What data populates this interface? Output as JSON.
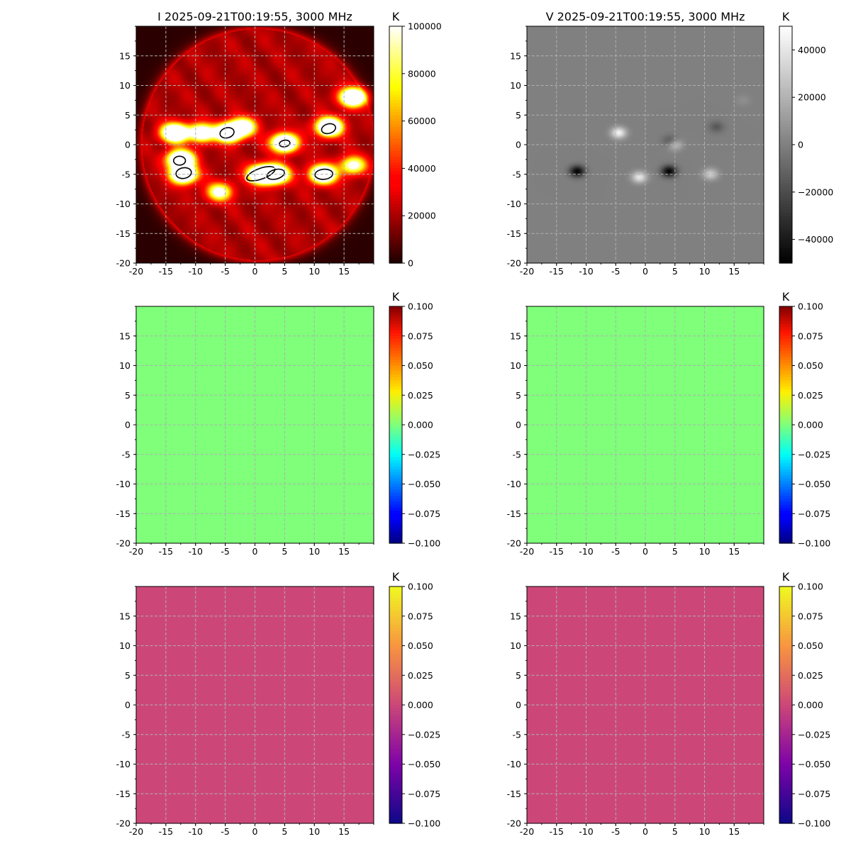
{
  "figure": {
    "background": "#ffffff"
  },
  "chart_data": [
    {
      "id": "I",
      "type": "heatmap",
      "title": "I 2025-09-21T00:19:55, 3000 MHz",
      "xlim": [
        -20,
        20
      ],
      "ylim": [
        -20,
        20
      ],
      "x_ticks": [
        -20,
        -15,
        -10,
        -5,
        0,
        5,
        10,
        15
      ],
      "y_ticks": [
        -20,
        -15,
        -10,
        -5,
        0,
        5,
        10,
        15
      ],
      "grid": true,
      "colormap": "hot",
      "colorbar": {
        "label": "K",
        "min": 0,
        "max": 100000,
        "ticks": [
          0,
          20000,
          40000,
          60000,
          80000,
          100000
        ]
      },
      "contours": "black contour rings around the brightest sources (level 100000)",
      "sources": [
        {
          "x": -13.5,
          "y": 2.0,
          "brightness": 1.0
        },
        {
          "x": -12.5,
          "y": -2.5,
          "brightness": 1.0
        },
        {
          "x": -12,
          "y": -5,
          "brightness": 1.0
        },
        {
          "x": -9,
          "y": 2.0,
          "brightness": 0.75
        },
        {
          "x": -4.5,
          "y": 2.0,
          "brightness": 1.0
        },
        {
          "x": -2,
          "y": 3,
          "brightness": 0.7
        },
        {
          "x": 1,
          "y": -5,
          "brightness": 1.0
        },
        {
          "x": 3.5,
          "y": -5,
          "brightness": 1.0
        },
        {
          "x": 5,
          "y": 0.3,
          "brightness": 1.0
        },
        {
          "x": 12.5,
          "y": 3,
          "brightness": 1.0
        },
        {
          "x": 11.5,
          "y": -5,
          "brightness": 1.0
        },
        {
          "x": 16.5,
          "y": 8,
          "brightness": 0.95
        },
        {
          "x": -6,
          "y": -8,
          "brightness": 0.55
        },
        {
          "x": 16.5,
          "y": -3.5,
          "brightness": 0.55
        }
      ],
      "disk": {
        "center": [
          0.5,
          0
        ],
        "radius": 19.5,
        "level": 0.3
      }
    },
    {
      "id": "V",
      "type": "heatmap",
      "title": "V 2025-09-21T00:19:55, 3000 MHz",
      "xlim": [
        -20,
        20
      ],
      "ylim": [
        -20,
        20
      ],
      "x_ticks": [
        -20,
        -15,
        -10,
        -5,
        0,
        5,
        10,
        15
      ],
      "y_ticks": [
        -20,
        -15,
        -10,
        -5,
        0,
        5,
        10,
        15
      ],
      "grid": true,
      "colormap": "gray",
      "colorbar": {
        "label": "K",
        "min": -50000,
        "max": 50000,
        "ticks": [
          -40000,
          -20000,
          0,
          20000,
          40000
        ]
      },
      "sources": [
        {
          "x": -11.5,
          "y": -4.5,
          "value": -48000
        },
        {
          "x": -4.5,
          "y": 2.0,
          "value": 45000
        },
        {
          "x": -1,
          "y": -5.5,
          "value": 40000
        },
        {
          "x": 4,
          "y": -4.5,
          "value": -48000
        },
        {
          "x": 5,
          "y": 0,
          "value": 25000
        },
        {
          "x": 4.2,
          "y": 0.6,
          "value": -18000
        },
        {
          "x": 11,
          "y": -5,
          "value": 30000
        },
        {
          "x": 12,
          "y": 3,
          "value": -15000
        },
        {
          "x": 16.5,
          "y": 7.5,
          "value": 6000
        }
      ]
    },
    {
      "id": "row2-left",
      "type": "heatmap",
      "title": "",
      "xlim": [
        -20,
        20
      ],
      "ylim": [
        -20,
        20
      ],
      "x_ticks": [
        -20,
        -15,
        -10,
        -5,
        0,
        5,
        10,
        15
      ],
      "y_ticks": [
        -20,
        -15,
        -10,
        -5,
        0,
        5,
        10,
        15
      ],
      "grid": true,
      "colormap": "jet",
      "fill": "#7fff7a",
      "colorbar": {
        "label": "K",
        "min": -0.1,
        "max": 0.1,
        "ticks": [
          -0.1,
          -0.075,
          -0.05,
          -0.025,
          0.0,
          0.025,
          0.05,
          0.075,
          0.1
        ]
      },
      "values": "constant 0.000"
    },
    {
      "id": "row2-right",
      "type": "heatmap",
      "title": "",
      "xlim": [
        -20,
        20
      ],
      "ylim": [
        -20,
        20
      ],
      "x_ticks": [
        -20,
        -15,
        -10,
        -5,
        0,
        5,
        10,
        15
      ],
      "y_ticks": [
        -20,
        -15,
        -10,
        -5,
        0,
        5,
        10,
        15
      ],
      "grid": true,
      "colormap": "jet",
      "fill": "#7fff7a",
      "colorbar": {
        "label": "K",
        "min": -0.1,
        "max": 0.1,
        "ticks": [
          -0.1,
          -0.075,
          -0.05,
          -0.025,
          0.0,
          0.025,
          0.05,
          0.075,
          0.1
        ]
      },
      "values": "constant 0.000"
    },
    {
      "id": "row3-left",
      "type": "heatmap",
      "title": "",
      "xlim": [
        -20,
        20
      ],
      "ylim": [
        -20,
        20
      ],
      "x_ticks": [
        -20,
        -15,
        -10,
        -5,
        0,
        5,
        10,
        15
      ],
      "y_ticks": [
        -20,
        -15,
        -10,
        -5,
        0,
        5,
        10,
        15
      ],
      "grid": true,
      "colormap": "plasma",
      "fill": "#cc4778",
      "colorbar": {
        "label": "K",
        "min": -0.1,
        "max": 0.1,
        "ticks": [
          -0.1,
          -0.075,
          -0.05,
          -0.025,
          0.0,
          0.025,
          0.05,
          0.075,
          0.1
        ]
      },
      "values": "constant 0.000"
    },
    {
      "id": "row3-right",
      "type": "heatmap",
      "title": "",
      "xlim": [
        -20,
        20
      ],
      "ylim": [
        -20,
        20
      ],
      "x_ticks": [
        -20,
        -15,
        -10,
        -5,
        0,
        5,
        10,
        15
      ],
      "y_ticks": [
        -20,
        -15,
        -10,
        -5,
        0,
        5,
        10,
        15
      ],
      "grid": true,
      "colormap": "plasma",
      "fill": "#cc4778",
      "colorbar": {
        "label": "K",
        "min": -0.1,
        "max": 0.1,
        "ticks": [
          -0.1,
          -0.075,
          -0.05,
          -0.025,
          0.0,
          0.025,
          0.05,
          0.075,
          0.1
        ]
      },
      "values": "constant 0.000"
    }
  ]
}
